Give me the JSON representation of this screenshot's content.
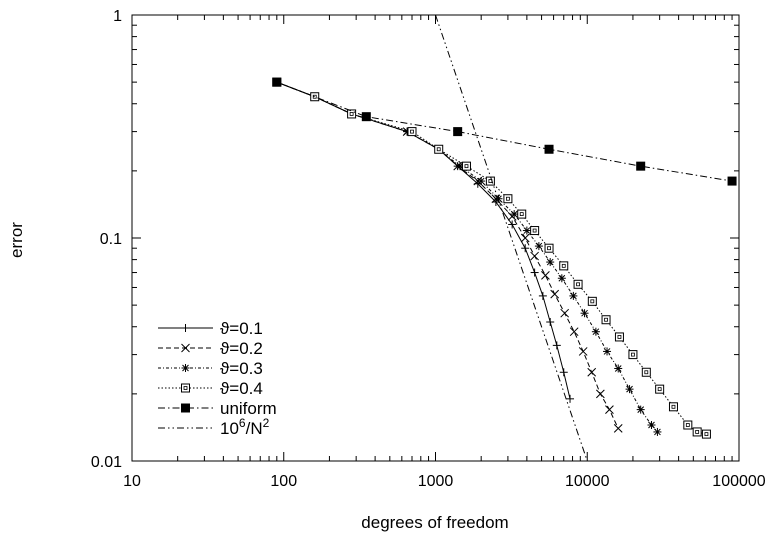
{
  "chart_data": {
    "type": "line",
    "xlabel": "degrees of freedom",
    "ylabel": "error",
    "xscale": "log",
    "yscale": "log",
    "xlim": [
      10,
      100000
    ],
    "ylim": [
      0.01,
      1
    ],
    "grid": false,
    "legend_position": "bottom-left",
    "x_ticks": [
      {
        "value": 10,
        "label": "10"
      },
      {
        "value": 100,
        "label": "100"
      },
      {
        "value": 1000,
        "label": "1000"
      },
      {
        "value": 10000,
        "label": "10000"
      },
      {
        "value": 100000,
        "label": "100000"
      }
    ],
    "y_ticks": [
      {
        "value": 0.01,
        "label": "0.01"
      },
      {
        "value": 0.1,
        "label": "0.1"
      },
      {
        "value": 1,
        "label": "1"
      }
    ],
    "series": [
      {
        "name": "ϑ=0.1",
        "marker": "plus",
        "dash": "solid",
        "x": [
          90,
          160,
          280,
          650,
          1050,
          1400,
          1900,
          2500,
          3200,
          3900,
          4500,
          5100,
          5700,
          6300,
          7000,
          7700
        ],
        "y": [
          0.5,
          0.43,
          0.36,
          0.3,
          0.25,
          0.21,
          0.175,
          0.145,
          0.115,
          0.09,
          0.07,
          0.055,
          0.042,
          0.033,
          0.025,
          0.019
        ]
      },
      {
        "name": "ϑ=0.2",
        "marker": "x",
        "dash": "dashed",
        "x": [
          90,
          160,
          280,
          650,
          1050,
          1400,
          1900,
          2500,
          3200,
          3900,
          4500,
          5300,
          6100,
          7100,
          8200,
          9400,
          10700,
          12200,
          14000,
          16000
        ],
        "y": [
          0.5,
          0.43,
          0.36,
          0.3,
          0.25,
          0.21,
          0.18,
          0.15,
          0.125,
          0.1,
          0.083,
          0.068,
          0.056,
          0.046,
          0.038,
          0.031,
          0.025,
          0.02,
          0.017,
          0.014
        ]
      },
      {
        "name": "ϑ=0.3",
        "marker": "star",
        "dash": "dotted-dashed",
        "x": [
          90,
          160,
          280,
          650,
          1050,
          1450,
          2000,
          2600,
          3300,
          4000,
          4800,
          5700,
          6800,
          8100,
          9600,
          11400,
          13500,
          16000,
          19000,
          22500,
          26500,
          29000
        ],
        "y": [
          0.5,
          0.43,
          0.36,
          0.3,
          0.25,
          0.21,
          0.18,
          0.15,
          0.128,
          0.108,
          0.092,
          0.078,
          0.066,
          0.055,
          0.046,
          0.038,
          0.031,
          0.026,
          0.021,
          0.017,
          0.0145,
          0.0135
        ]
      },
      {
        "name": "ϑ=0.4",
        "marker": "square-open",
        "dash": "dotted",
        "x": [
          90,
          160,
          280,
          700,
          1050,
          1600,
          2300,
          3000,
          3700,
          4500,
          5600,
          7000,
          8700,
          10800,
          13300,
          16300,
          20000,
          24500,
          30000,
          37000,
          46000,
          53000,
          61000
        ],
        "y": [
          0.5,
          0.43,
          0.36,
          0.3,
          0.25,
          0.21,
          0.18,
          0.15,
          0.128,
          0.108,
          0.09,
          0.075,
          0.062,
          0.052,
          0.043,
          0.036,
          0.03,
          0.025,
          0.021,
          0.0175,
          0.0145,
          0.0135,
          0.0132
        ]
      },
      {
        "name": "uniform",
        "marker": "square-filled",
        "dash": "dash-dot",
        "x": [
          90,
          350,
          1400,
          5600,
          22500,
          90000
        ],
        "y": [
          0.5,
          0.35,
          0.3,
          0.25,
          0.21,
          0.18
        ]
      },
      {
        "name": "10⁶/N²",
        "name_base": "10",
        "name_exp1": "6",
        "name_mid": "/N",
        "name_exp2": "2",
        "marker": "none",
        "dash": "dash-dot-dot",
        "x": [
          1000,
          10000
        ],
        "y": [
          1,
          0.01
        ]
      }
    ]
  }
}
